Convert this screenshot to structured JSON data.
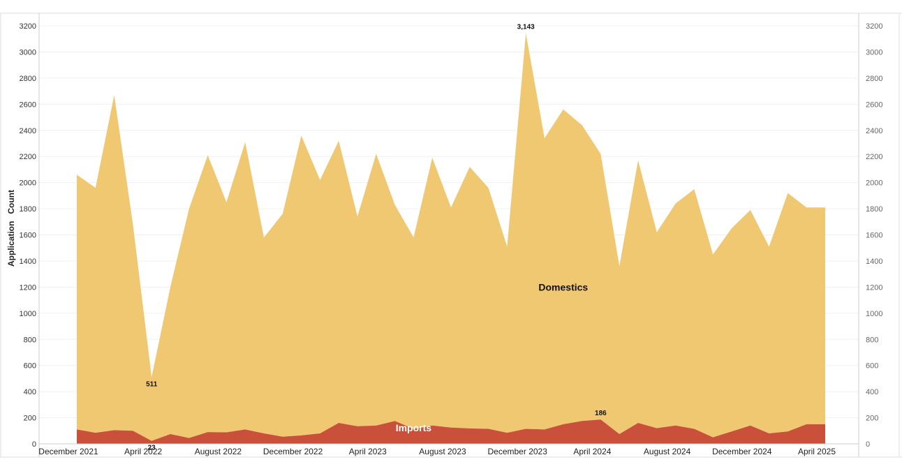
{
  "chart_data": {
    "type": "area",
    "title": "",
    "xlabel": "",
    "ylabel": "Application   Count",
    "ylim": [
      0,
      3200
    ],
    "y_ticks": [
      0,
      200,
      400,
      600,
      800,
      1000,
      1200,
      1400,
      1600,
      1800,
      2000,
      2200,
      2400,
      2600,
      2800,
      3000,
      3200
    ],
    "right_axis_ticks": [
      0,
      200,
      400,
      600,
      800,
      1000,
      1200,
      1400,
      1600,
      1800,
      2000,
      2200,
      2400,
      2600,
      2800,
      3000,
      3200
    ],
    "grid": true,
    "stacked": true,
    "x_tick_labels": [
      {
        "label": "December 2021",
        "index": 0
      },
      {
        "label": "April 2022",
        "index": 4
      },
      {
        "label": "August 2022",
        "index": 8
      },
      {
        "label": "December 2022",
        "index": 12
      },
      {
        "label": "April 2023",
        "index": 16
      },
      {
        "label": "August 2023",
        "index": 20
      },
      {
        "label": "December 2023",
        "index": 24
      },
      {
        "label": "April 2024",
        "index": 28
      },
      {
        "label": "August 2024",
        "index": 32
      },
      {
        "label": "December 2024",
        "index": 36
      },
      {
        "label": "April 2025",
        "index": 40
      }
    ],
    "x": [
      "2021-12",
      "2022-01",
      "2022-02",
      "2022-03",
      "2022-04",
      "2022-05",
      "2022-06",
      "2022-07",
      "2022-08",
      "2022-09",
      "2022-10",
      "2022-11",
      "2022-12",
      "2023-01",
      "2023-02",
      "2023-03",
      "2023-04",
      "2023-05",
      "2023-06",
      "2023-07",
      "2023-08",
      "2023-09",
      "2023-10",
      "2023-11",
      "2023-12",
      "2024-01",
      "2024-02",
      "2024-03",
      "2024-04",
      "2024-05",
      "2024-06",
      "2024-07",
      "2024-08",
      "2024-09",
      "2024-10",
      "2024-11",
      "2024-12",
      "2025-01",
      "2025-02",
      "2025-03",
      "2025-04"
    ],
    "series": [
      {
        "name": "Imports",
        "color": "#c9503a",
        "values": [
          110,
          85,
          105,
          100,
          23,
          75,
          45,
          90,
          88,
          110,
          80,
          55,
          65,
          80,
          160,
          135,
          140,
          175,
          115,
          140,
          125,
          118,
          115,
          85,
          115,
          110,
          150,
          175,
          186,
          75,
          160,
          120,
          140,
          115,
          50,
          95,
          140,
          80,
          95,
          150,
          150
        ]
      },
      {
        "name": "Domestics",
        "color": "#f0c872",
        "totals": [
          2060,
          1960,
          2670,
          1680,
          511,
          1200,
          1800,
          2210,
          1850,
          2310,
          1580,
          1760,
          2360,
          2020,
          2320,
          1740,
          2220,
          1830,
          1580,
          2190,
          1810,
          2120,
          1960,
          1510,
          3143,
          2340,
          2560,
          2440,
          2220,
          1360,
          2170,
          1620,
          1840,
          1950,
          1450,
          1650,
          1790,
          1510,
          1920,
          1810,
          1810
        ]
      }
    ],
    "annotations": [
      {
        "text": "3,143",
        "index": 24,
        "value": 3143,
        "position": "above"
      },
      {
        "text": "511",
        "index": 4,
        "value": 511,
        "position": "below"
      },
      {
        "text": "23",
        "index": 4,
        "value": 23,
        "position": "below"
      },
      {
        "text": "186",
        "index": 28,
        "value": 186,
        "position": "above"
      }
    ],
    "series_labels": [
      {
        "text": "Domestics",
        "index": 26,
        "value": 1150,
        "color": "#111111"
      },
      {
        "text": "Imports",
        "index": 18,
        "value": 75,
        "color": "#ffffff"
      }
    ]
  }
}
